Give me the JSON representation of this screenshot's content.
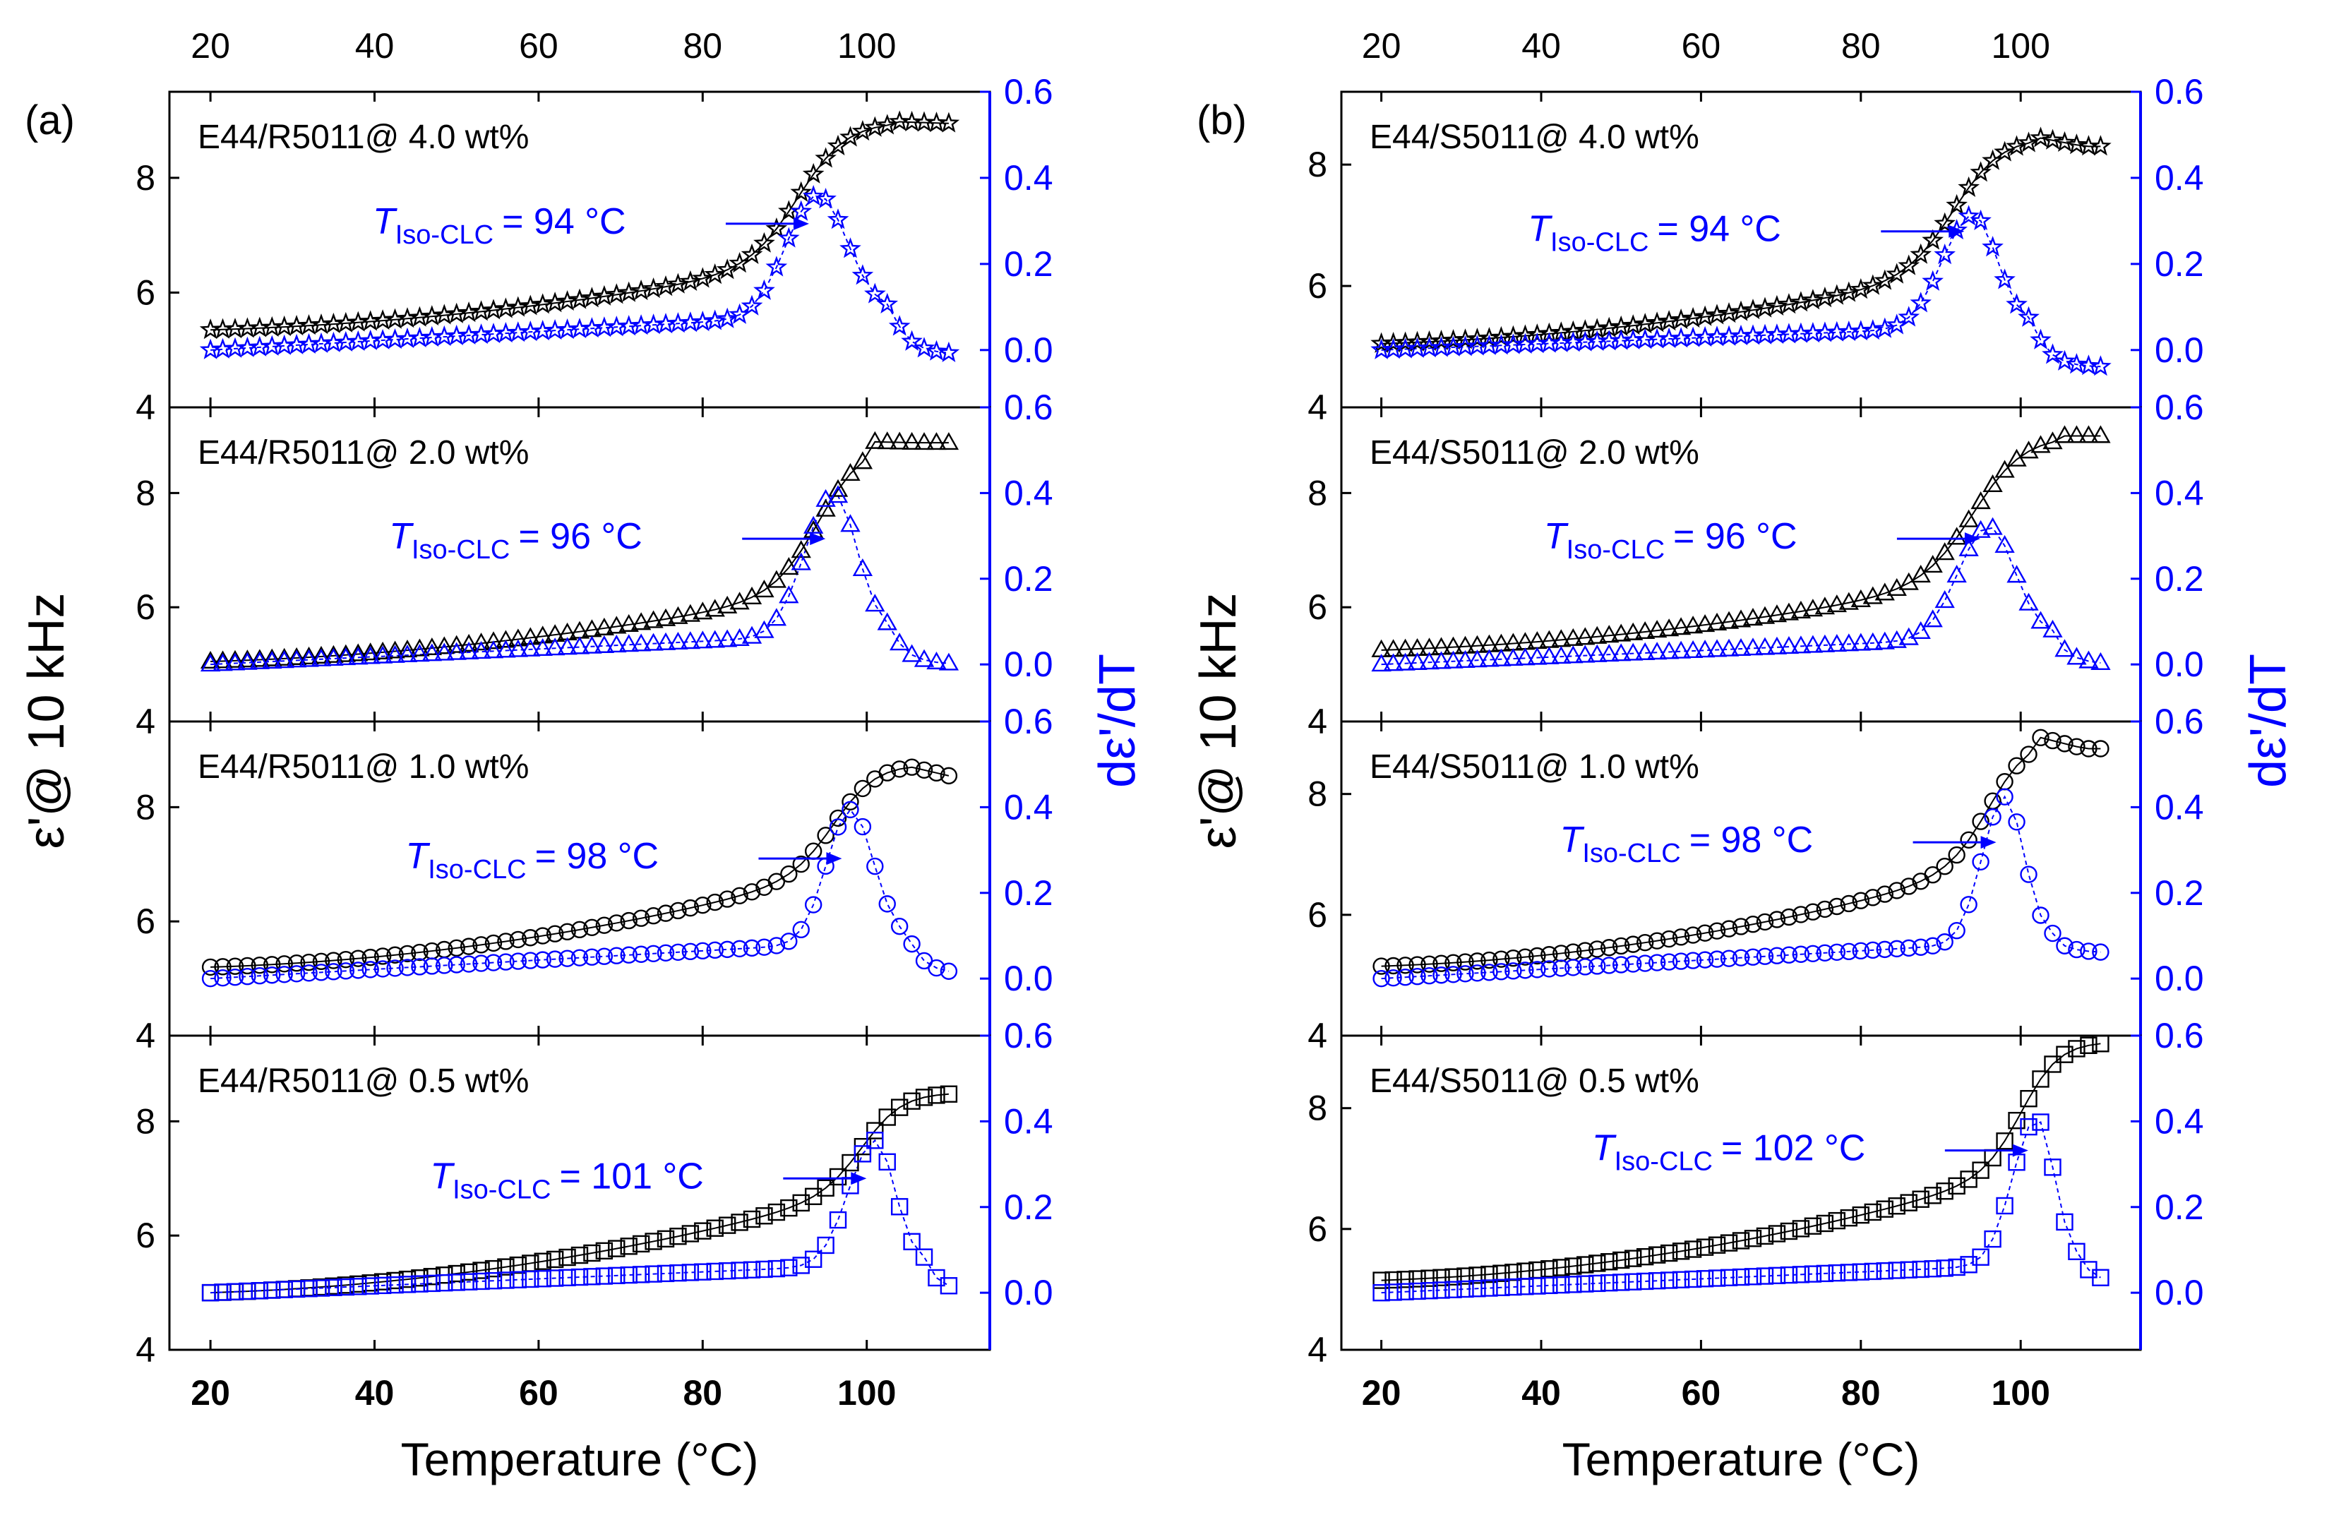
{
  "figure": {
    "x_axis_label": "Temperature (°C)",
    "y_left_label": "ε'@ 10 kHz",
    "y_right_label": "dε'/dT",
    "colors": {
      "primary": "#000000",
      "derivative": "#0000ff",
      "frame": "#000000"
    }
  },
  "chart_data": [
    {
      "panel_label": "(a)",
      "type": "line",
      "xlim": [
        15,
        115
      ],
      "xticks": [
        "20",
        "40",
        "60",
        "80",
        "100"
      ],
      "subplots": [
        {
          "title": "E44/R5011@ 4.0 wt%",
          "marker": "star",
          "annot_sym": "T",
          "annot_sub": "Iso-CLC",
          "annot_val": "= 94 °C",
          "ylim_left": [
            4,
            9.5
          ],
          "yticks_left": [
            "4",
            "6",
            "8"
          ],
          "ylim_right": [
            -0.12,
            0.6
          ],
          "yticks_right": [
            "0.0",
            "0.2",
            "0.4",
            "0.6"
          ],
          "eps": {
            "T0": 20,
            "v0": 5.35,
            "vmax": 8.98,
            "Tc": 92,
            "w": 3.0,
            "Tpeak": 103.5,
            "vEnd": 8.95
          },
          "deriv": {
            "base": 0.0,
            "slope": 0.0012,
            "peak": 0.28,
            "Tp": 94,
            "sL": 3.8,
            "sR": 3.6,
            "tail": -0.01
          },
          "annot_data_x": 94,
          "annot_data_y": 7.2
        },
        {
          "title": "E44/R5011@ 2.0 wt%",
          "marker": "triangle",
          "annot_sym": "T",
          "annot_sub": "Iso-CLC",
          "annot_val": "= 96 °C",
          "ylim_left": [
            4,
            9.5
          ],
          "yticks_left": [
            "4",
            "6",
            "8"
          ],
          "ylim_right": [
            -0.12,
            0.6
          ],
          "yticks_right": [
            "0.0",
            "0.2",
            "0.4",
            "0.6"
          ],
          "eps": {
            "T0": 20,
            "v0": 5.05,
            "vmax": 8.9,
            "Tc": 94.5,
            "w": 2.8,
            "Tpeak": 100,
            "vEnd": 8.88
          },
          "deriv": {
            "base": 0.0,
            "slope": 0.001,
            "peak": 0.33,
            "Tp": 96,
            "sL": 3.5,
            "sR": 2.8,
            "tail": 0.0
          },
          "annot_data_x": 96,
          "annot_data_y": 7.2
        },
        {
          "title": "E44/R5011@ 1.0 wt%",
          "marker": "circle",
          "annot_sym": "T",
          "annot_sub": "Iso-CLC",
          "annot_val": "= 98 °C",
          "ylim_left": [
            4,
            9.5
          ],
          "yticks_left": [
            "4",
            "6",
            "8"
          ],
          "ylim_right": [
            -0.12,
            0.6
          ],
          "yticks_right": [
            "0.0",
            "0.2",
            "0.4",
            "0.6"
          ],
          "eps": {
            "T0": 20,
            "v0": 5.2,
            "vmax": 8.75,
            "Tc": 96.5,
            "w": 2.6,
            "Tpeak": 104,
            "vEnd": 8.55
          },
          "deriv": {
            "base": 0.0,
            "slope": 0.0012,
            "peak": 0.31,
            "Tp": 98,
            "sL": 2.9,
            "sR": 2.8,
            "tail": 0.01
          },
          "annot_data_x": 98,
          "annot_data_y": 7.1
        },
        {
          "title": "E44/R5011@ 0.5 wt%",
          "marker": "square",
          "annot_sym": "T",
          "annot_sub": "Iso-CLC",
          "annot_val": "= 101 °C",
          "ylim_left": [
            4,
            9.5
          ],
          "yticks_left": [
            "4",
            "6",
            "8"
          ],
          "ylim_right": [
            -0.12,
            0.6
          ],
          "yticks_right": [
            "0.0",
            "0.2",
            "0.4",
            "0.6"
          ],
          "eps": {
            "T0": 20,
            "v0": 5.0,
            "vmax": 8.5,
            "Tc": 100,
            "w": 2.5,
            "Tpeak": 110,
            "vEnd": 8.5
          },
          "deriv": {
            "base": 0.0,
            "slope": 0.0009,
            "peak": 0.29,
            "Tp": 101,
            "sL": 3.2,
            "sR": 2.4,
            "tail": 0.0
          },
          "annot_data_x": 101,
          "annot_data_y": 7.0
        }
      ]
    },
    {
      "panel_label": "(b)",
      "type": "line",
      "xlim": [
        15,
        115
      ],
      "xticks": [
        "20",
        "40",
        "60",
        "80",
        "100"
      ],
      "subplots": [
        {
          "title": "E44/S5011@ 4.0 wt%",
          "marker": "star",
          "annot_sym": "T",
          "annot_sub": "Iso-CLC",
          "annot_val": "= 94 °C",
          "ylim_left": [
            4,
            9.2
          ],
          "yticks_left": [
            "4",
            "6",
            "8"
          ],
          "ylim_right": [
            -0.12,
            0.6
          ],
          "yticks_right": [
            "0.0",
            "0.2",
            "0.4",
            "0.6"
          ],
          "eps": {
            "T0": 20,
            "v0": 5.05,
            "vmax": 8.45,
            "Tc": 92,
            "w": 3.0,
            "Tpeak": 102,
            "vEnd": 8.3
          },
          "deriv": {
            "base": 0.0,
            "slope": 0.0008,
            "peak": 0.26,
            "Tp": 94,
            "sL": 3.8,
            "sR": 3.0,
            "tail": -0.04
          },
          "annot_data_x": 94,
          "annot_data_y": 6.9
        },
        {
          "title": "E44/S5011@ 2.0 wt%",
          "marker": "triangle",
          "annot_sym": "T",
          "annot_sub": "Iso-CLC",
          "annot_val": "= 96 °C",
          "ylim_left": [
            4,
            9.5
          ],
          "yticks_left": [
            "4",
            "6",
            "8"
          ],
          "ylim_right": [
            -0.12,
            0.6
          ],
          "yticks_right": [
            "0.0",
            "0.2",
            "0.4",
            "0.6"
          ],
          "eps": {
            "T0": 20,
            "v0": 5.25,
            "vmax": 9.0,
            "Tc": 94.5,
            "w": 3.2,
            "Tpeak": 104,
            "vEnd": 9.0
          },
          "deriv": {
            "base": 0.0,
            "slope": 0.0009,
            "peak": 0.26,
            "Tp": 96,
            "sL": 3.8,
            "sR": 3.2,
            "tail": 0.0
          },
          "annot_data_x": 96,
          "annot_data_y": 7.2
        },
        {
          "title": "E44/S5011@ 1.0 wt%",
          "marker": "circle",
          "annot_sym": "T",
          "annot_sub": "Iso-CLC",
          "annot_val": "= 98 °C",
          "ylim_left": [
            4,
            9.2
          ],
          "yticks_left": [
            "4",
            "6",
            "8"
          ],
          "ylim_right": [
            -0.12,
            0.6
          ],
          "yticks_right": [
            "0.0",
            "0.2",
            "0.4",
            "0.6"
          ],
          "eps": {
            "T0": 20,
            "v0": 5.15,
            "vmax": 8.95,
            "Tc": 96.5,
            "w": 2.6,
            "Tpeak": 102,
            "vEnd": 8.75
          },
          "deriv": {
            "base": 0.0,
            "slope": 0.0012,
            "peak": 0.34,
            "Tp": 98,
            "sL": 2.8,
            "sR": 2.4,
            "tail": 0.06
          },
          "annot_data_x": 98,
          "annot_data_y": 7.2
        },
        {
          "title": "E44/S5011@ 0.5 wt%",
          "marker": "square",
          "annot_sym": "T",
          "annot_sub": "Iso-CLC",
          "annot_val": "= 102 °C",
          "ylim_left": [
            4,
            9.2
          ],
          "yticks_left": [
            "4",
            "6",
            "8"
          ],
          "ylim_right": [
            -0.12,
            0.6
          ],
          "yticks_right": [
            "0.0",
            "0.2",
            "0.4",
            "0.6"
          ],
          "eps": {
            "T0": 20,
            "v0": 5.15,
            "vmax": 9.1,
            "Tc": 100.5,
            "w": 2.4,
            "Tpeak": 110,
            "vEnd": 9.15
          },
          "deriv": {
            "base": 0.0,
            "slope": 0.0009,
            "peak": 0.34,
            "Tp": 102,
            "sL": 3.0,
            "sR": 2.2,
            "tail": 0.02
          },
          "annot_data_x": 102,
          "annot_data_y": 7.3
        }
      ]
    }
  ]
}
